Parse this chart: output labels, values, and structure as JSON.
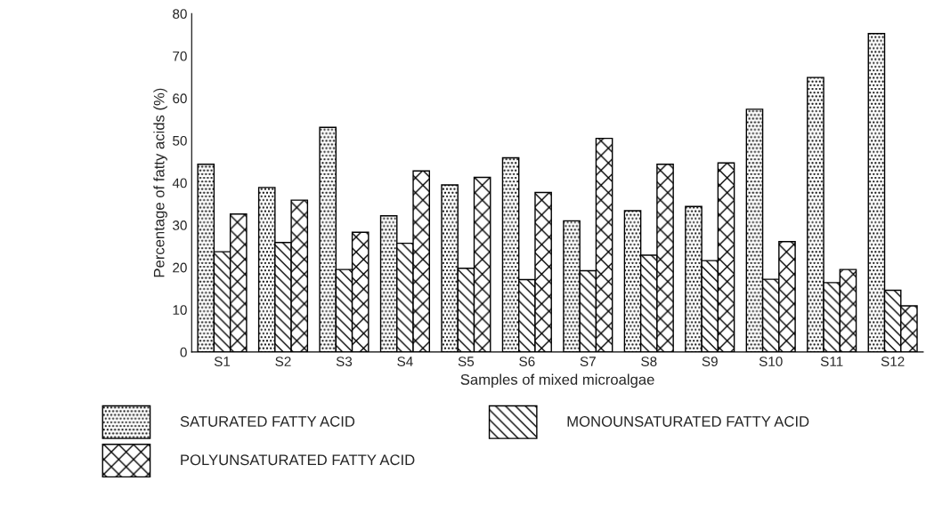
{
  "chart_data": {
    "type": "bar",
    "xlabel": "Samples of mixed microalgae",
    "ylabel": "Percentage of fatty acids (%)",
    "categories": [
      "S1",
      "S2",
      "S3",
      "S4",
      "S5",
      "S6",
      "S7",
      "S8",
      "S9",
      "S10",
      "S11",
      "S12"
    ],
    "series": [
      {
        "name": "SATURATED FATTY ACID",
        "color": "#000000",
        "values": [
          44.4,
          38.9,
          53.1,
          32.2,
          39.5,
          45.9,
          31.0,
          33.4,
          34.4,
          57.4,
          64.9,
          75.3
        ]
      },
      {
        "name": "MONOUNSATURATED FATTY ACID",
        "color": "#000000",
        "values": [
          23.7,
          25.9,
          19.5,
          25.7,
          19.8,
          17.1,
          19.2,
          22.9,
          21.6,
          17.2,
          16.4,
          14.6
        ]
      },
      {
        "name": "POLYUNSATURATED FATTY ACID",
        "color": "#000000",
        "values": [
          32.6,
          35.9,
          28.3,
          42.8,
          41.3,
          37.7,
          50.5,
          44.4,
          44.7,
          26.1,
          19.5,
          10.9
        ]
      }
    ],
    "ylim": [
      0,
      80
    ],
    "yticks": [
      0,
      10,
      20,
      30,
      40,
      50,
      60,
      70,
      80
    ],
    "grid": false,
    "legend": "bottom"
  }
}
